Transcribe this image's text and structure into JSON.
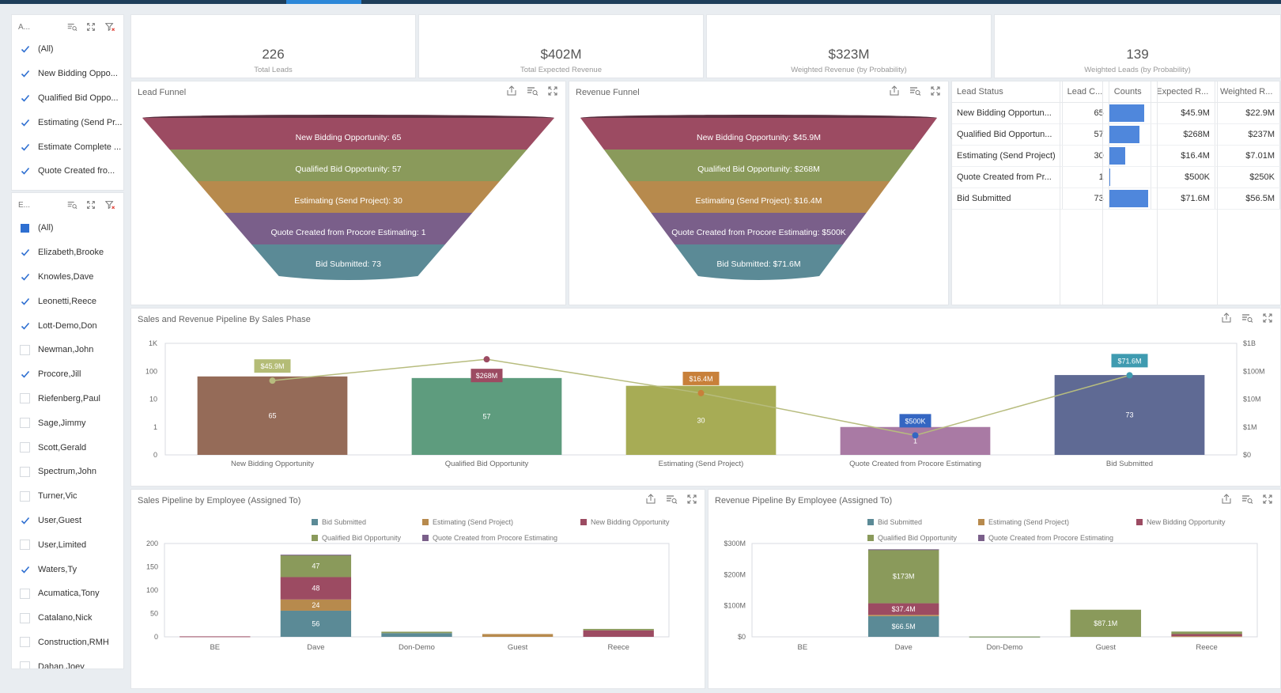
{
  "filter1": {
    "header": "A...",
    "items": [
      {
        "label": "(All)",
        "state": "checked"
      },
      {
        "label": "New Bidding Oppo...",
        "state": "checked"
      },
      {
        "label": "Qualified Bid Oppo...",
        "state": "checked"
      },
      {
        "label": "Estimating (Send Pr...",
        "state": "checked"
      },
      {
        "label": "Estimate Complete ...",
        "state": "checked"
      },
      {
        "label": "Quote Created fro...",
        "state": "checked"
      },
      {
        "label": "Bid Submitted",
        "state": "checked"
      }
    ]
  },
  "filter2": {
    "header": "E...",
    "items": [
      {
        "label": "(All)",
        "state": "partial"
      },
      {
        "label": "Elizabeth,Brooke",
        "state": "checked"
      },
      {
        "label": "Knowles,Dave",
        "state": "checked"
      },
      {
        "label": "Leonetti,Reece",
        "state": "checked"
      },
      {
        "label": "Lott-Demo,Don",
        "state": "checked"
      },
      {
        "label": "Newman,John",
        "state": "empty"
      },
      {
        "label": "Procore,Jill",
        "state": "checked"
      },
      {
        "label": "Riefenberg,Paul",
        "state": "empty"
      },
      {
        "label": "Sage,Jimmy",
        "state": "empty"
      },
      {
        "label": "Scott,Gerald",
        "state": "empty"
      },
      {
        "label": "Spectrum,John",
        "state": "empty"
      },
      {
        "label": "Turner,Vic",
        "state": "empty"
      },
      {
        "label": "User,Guest",
        "state": "checked"
      },
      {
        "label": "User,Limited",
        "state": "empty"
      },
      {
        "label": "Waters,Ty",
        "state": "checked"
      },
      {
        "label": "Acumatica,Tony",
        "state": "empty"
      },
      {
        "label": "Catalano,Nick",
        "state": "empty"
      },
      {
        "label": "Construction,RMH",
        "state": "empty"
      },
      {
        "label": "Dahan,Joey",
        "state": "empty"
      }
    ]
  },
  "kpis": [
    {
      "value": "226",
      "label": "Total Leads"
    },
    {
      "value": "$402M",
      "label": "Total Expected Revenue"
    },
    {
      "value": "$323M",
      "label": "Weighted Revenue (by Probability)"
    },
    {
      "value": "139",
      "label": "Weighted Leads (by Probability)"
    }
  ],
  "lead_funnel": {
    "title": "Lead Funnel",
    "labels": [
      "New Bidding Opportunity: 65",
      "Qualified Bid Opportunity: 57",
      "Estimating (Send Project): 30",
      "Quote Created from Procore Estimating: 1",
      "Bid Submitted: 73"
    ]
  },
  "revenue_funnel": {
    "title": "Revenue Funnel",
    "labels": [
      "New Bidding Opportunity: $45.9M",
      "Qualified Bid Opportunity: $268M",
      "Estimating (Send Project): $16.4M",
      "Quote Created from Procore Estimating: $500K",
      "Bid Submitted: $71.6M"
    ]
  },
  "lead_status_grid": {
    "headers": [
      "Lead Status",
      "Lead C...",
      "Counts",
      "Expected R...",
      "Weighted R..."
    ],
    "rows": [
      {
        "status": "New Bidding Opportun...",
        "count": "65",
        "count_value": 65,
        "expected": "$45.9M",
        "weighted": "$22.9M"
      },
      {
        "status": "Qualified Bid Opportun...",
        "count": "57",
        "count_value": 57,
        "expected": "$268M",
        "weighted": "$237M"
      },
      {
        "status": "Estimating (Send Project)",
        "count": "30",
        "count_value": 30,
        "expected": "$16.4M",
        "weighted": "$7.01M"
      },
      {
        "status": "Quote Created from Pr...",
        "count": "1",
        "count_value": 1,
        "expected": "$500K",
        "weighted": "$250K"
      },
      {
        "status": "Bid Submitted",
        "count": "73",
        "count_value": 73,
        "expected": "$71.6M",
        "weighted": "$56.5M"
      }
    ]
  },
  "pipeline_panel": {
    "title": "Sales and Revenue Pipeline By Sales Phase"
  },
  "employee_panel": {
    "title": "Sales Pipeline by Employee (Assigned To)"
  },
  "revenue_employee_panel": {
    "title": "Revenue Pipeline By Employee (Assigned To)"
  },
  "colors": {
    "bid_submitted": "#5b8a96",
    "estimating": "#b78a4d",
    "new_bidding": "#9c4b62",
    "qualified": "#8a9a5b",
    "quote_created": "#7a5f8a",
    "grid_bar": "#4f87dc"
  },
  "chart_data": [
    {
      "type": "bar",
      "title": "Sales and Revenue Pipeline By Sales Phase",
      "categories": [
        "New Bidding Opportunity",
        "Qualified Bid Opportunity",
        "Estimating (Send Project)",
        "Quote Created from Procore Estimating",
        "Bid Submitted"
      ],
      "series": [
        {
          "values": [
            65,
            57,
            30,
            1,
            73
          ],
          "axis": "left",
          "kind": "bar",
          "labels": [
            "65",
            "57",
            "30",
            "1",
            "73"
          ]
        },
        {
          "values": [
            45900000,
            268000000,
            16400000,
            500000,
            71600000
          ],
          "axis": "right",
          "kind": "line",
          "labels": [
            "$45.9M",
            "$268M",
            "$16.4M",
            "$500K",
            "$71.6M"
          ]
        }
      ],
      "y_left_scale": "log",
      "y_left_ticks": [
        "0",
        "1",
        "10",
        "100",
        "1K"
      ],
      "y_right_scale": "log",
      "y_right_ticks": [
        "$0",
        "$1M",
        "$10M",
        "$100M",
        "$1B"
      ],
      "bar_colors": [
        "#956b58",
        "#5e9c7e",
        "#a7ac55",
        "#a97aa4",
        "#5f6a94"
      ],
      "line_color": "#b7bc7e"
    },
    {
      "type": "bar",
      "stacked": true,
      "title": "Sales Pipeline by Employee (Assigned To)",
      "categories": [
        "BE",
        "Dave",
        "Don-Demo",
        "Guest",
        "Reece"
      ],
      "legend": [
        "Bid Submitted",
        "Estimating (Send Project)",
        "New Bidding Opportunity",
        "Qualified Bid Opportunity",
        "Quote Created from Procore Estimating"
      ],
      "series": [
        {
          "name": "Bid Submitted",
          "values": [
            0,
            56,
            8,
            0,
            0
          ],
          "labels": [
            "",
            "56",
            "",
            "",
            ""
          ]
        },
        {
          "name": "Estimating (Send Project)",
          "values": [
            0,
            24,
            0,
            6,
            0
          ],
          "labels": [
            "",
            "24",
            "",
            "",
            ""
          ]
        },
        {
          "name": "New Bidding Opportunity",
          "values": [
            1,
            48,
            0,
            0,
            14
          ],
          "labels": [
            "",
            "48",
            "",
            "",
            ""
          ]
        },
        {
          "name": "Qualified Bid Opportunity",
          "values": [
            0,
            47,
            3,
            0,
            3
          ],
          "labels": [
            "",
            "47",
            "",
            "",
            ""
          ]
        },
        {
          "name": "Quote Created from Procore Estimating",
          "values": [
            0,
            1,
            0,
            0,
            0
          ],
          "labels": [
            "",
            "",
            "",
            "",
            ""
          ]
        }
      ],
      "y_ticks": [
        "0",
        "50",
        "100",
        "150",
        "200"
      ],
      "ylim": [
        0,
        200
      ]
    },
    {
      "type": "bar",
      "stacked": true,
      "title": "Revenue Pipeline By Employee (Assigned To)",
      "categories": [
        "BE",
        "Dave",
        "Don-Demo",
        "Guest",
        "Reece"
      ],
      "legend": [
        "Bid Submitted",
        "Estimating (Send Project)",
        "New Bidding Opportunity",
        "Qualified Bid Opportunity",
        "Quote Created from Procore Estimating"
      ],
      "series": [
        {
          "name": "Bid Submitted",
          "values": [
            0,
            66.5,
            0.5,
            0,
            0
          ],
          "labels": [
            "",
            "$66.5M",
            "",
            "",
            ""
          ]
        },
        {
          "name": "Estimating (Send Project)",
          "values": [
            0,
            4,
            0,
            0,
            2
          ],
          "labels": [
            "",
            "",
            "",
            "",
            ""
          ]
        },
        {
          "name": "New Bidding Opportunity",
          "values": [
            0,
            37.4,
            0,
            0,
            7
          ],
          "labels": [
            "",
            "$37.4M",
            "",
            "",
            ""
          ]
        },
        {
          "name": "Qualified Bid Opportunity",
          "values": [
            0,
            173,
            0.5,
            87.1,
            8
          ],
          "labels": [
            "",
            "$173M",
            "",
            "$87.1M",
            ""
          ]
        },
        {
          "name": "Quote Created from Procore Estimating",
          "values": [
            0,
            0.5,
            0,
            0,
            0
          ],
          "labels": [
            "",
            "",
            "",
            "",
            ""
          ]
        }
      ],
      "y_ticks": [
        "$0",
        "$100M",
        "$200M",
        "$300M"
      ],
      "ylim": [
        0,
        300
      ]
    }
  ]
}
